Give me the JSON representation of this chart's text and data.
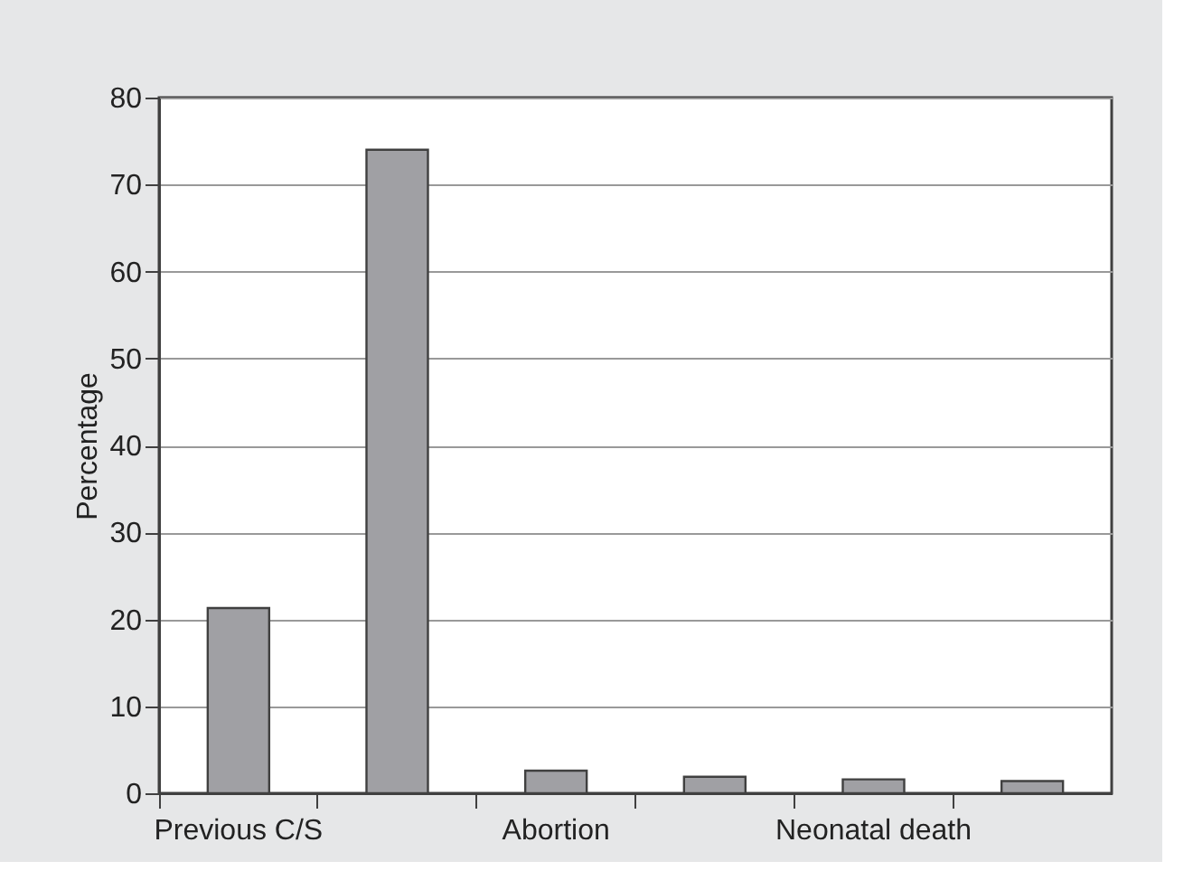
{
  "chart_data": {
    "type": "bar",
    "ylabel": "Percentage",
    "categories": [
      "Previous C/S",
      null,
      "Abortion",
      null,
      "Neonatal death",
      null
    ],
    "values": [
      21.3,
      74,
      2.6,
      1.9,
      1.6,
      1.4
    ],
    "color": "#a0a0a4",
    "ylim": [
      0,
      80
    ],
    "yticks": [
      0,
      10,
      20,
      30,
      40,
      50,
      60,
      70,
      80
    ],
    "grid": "y"
  }
}
